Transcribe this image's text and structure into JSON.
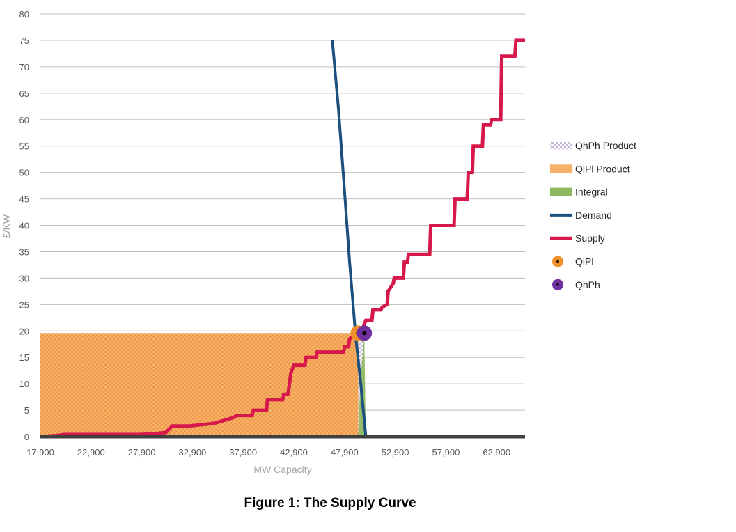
{
  "chart_data": {
    "type": "line",
    "title": "",
    "xlabel": "MW Capacity",
    "ylabel": "£/KW",
    "xlim": [
      17900,
      65700
    ],
    "ylim": [
      0,
      80
    ],
    "x_ticks": [
      "17,900",
      "22,900",
      "27,900",
      "32,900",
      "37,900",
      "42,900",
      "47,900",
      "52,900",
      "57,900",
      "62,900"
    ],
    "x_tick_values": [
      17900,
      22900,
      27900,
      32900,
      37900,
      42900,
      47900,
      52900,
      57900,
      62900
    ],
    "y_ticks": [
      0,
      5,
      10,
      15,
      20,
      25,
      30,
      35,
      40,
      45,
      50,
      55,
      60,
      65,
      70,
      75,
      80
    ],
    "grid": true,
    "legend_position": "right",
    "colors": {
      "demand": "#1b4f7e",
      "supply": "#d6184a",
      "qlpl_product": "#f6b26b",
      "qlpl_check": "#e8892d",
      "integral": "#8cb85c",
      "qhph_product": "#c9b8da",
      "qlpl_point": "#f0902a",
      "qhph_point": "#7030a0",
      "axis": "#404040",
      "grid": "#bfbfbf"
    },
    "series": [
      {
        "name": "Demand",
        "type": "line",
        "points": [
          [
            46700,
            75
          ],
          [
            47300,
            62
          ],
          [
            47800,
            49
          ],
          [
            48400,
            33
          ],
          [
            49000,
            19
          ],
          [
            49500,
            10
          ],
          [
            50000,
            0
          ]
        ]
      },
      {
        "name": "Supply",
        "type": "step",
        "points": [
          [
            17900,
            0
          ],
          [
            19500,
            0.2
          ],
          [
            20200,
            0.4
          ],
          [
            22000,
            0.4
          ],
          [
            27500,
            0.4
          ],
          [
            29000,
            0.5
          ],
          [
            30300,
            0.8
          ],
          [
            30900,
            2
          ],
          [
            32500,
            2
          ],
          [
            33500,
            2.2
          ],
          [
            35000,
            2.5
          ],
          [
            36800,
            3.5
          ],
          [
            37300,
            4
          ],
          [
            38800,
            4
          ],
          [
            38900,
            5
          ],
          [
            40200,
            5
          ],
          [
            40300,
            7
          ],
          [
            41800,
            7
          ],
          [
            41900,
            8
          ],
          [
            42300,
            8
          ],
          [
            42400,
            9
          ],
          [
            42600,
            12
          ],
          [
            42900,
            13.5
          ],
          [
            44000,
            13.5
          ],
          [
            44100,
            15
          ],
          [
            45100,
            15
          ],
          [
            45200,
            16
          ],
          [
            47800,
            16
          ],
          [
            47900,
            17
          ],
          [
            48300,
            17
          ],
          [
            48400,
            18.5
          ],
          [
            49100,
            19.6
          ],
          [
            49600,
            20
          ],
          [
            50000,
            22
          ],
          [
            50600,
            22
          ],
          [
            50700,
            24
          ],
          [
            51500,
            24
          ],
          [
            51600,
            24.5
          ],
          [
            52100,
            25
          ],
          [
            52200,
            27.5
          ],
          [
            52700,
            29
          ],
          [
            52800,
            30
          ],
          [
            53700,
            30
          ],
          [
            53800,
            33
          ],
          [
            54100,
            33
          ],
          [
            54200,
            34.5
          ],
          [
            56300,
            34.5
          ],
          [
            56400,
            40
          ],
          [
            58700,
            40
          ],
          [
            58800,
            45
          ],
          [
            60000,
            45
          ],
          [
            60100,
            50
          ],
          [
            60500,
            50
          ],
          [
            60600,
            55
          ],
          [
            61500,
            55
          ],
          [
            61600,
            59
          ],
          [
            62300,
            59
          ],
          [
            62400,
            60
          ],
          [
            63300,
            60
          ],
          [
            63400,
            72
          ],
          [
            64700,
            72
          ],
          [
            64800,
            75
          ],
          [
            65700,
            75
          ]
        ]
      }
    ],
    "areas": [
      {
        "name": "QlPl Product",
        "x": [
          17900,
          49250
        ],
        "y": [
          0,
          19.6
        ]
      },
      {
        "name": "QhPh Product",
        "x": [
          17900,
          49850
        ],
        "y": [
          0,
          19.6
        ]
      },
      {
        "name": "Integral",
        "points": [
          [
            49250,
            0
          ],
          [
            49450,
            10
          ],
          [
            49850,
            19.6
          ],
          [
            50000,
            0
          ]
        ]
      }
    ],
    "markers": [
      {
        "name": "QlPl",
        "x": 49250,
        "y": 19.6
      },
      {
        "name": "QhPh",
        "x": 49850,
        "y": 19.6
      }
    ],
    "legend": [
      "QhPh Product",
      "QlPl Product",
      "Integral",
      "Demand",
      "Supply",
      "QlPl",
      "QhPh"
    ]
  },
  "caption": "Figure 1: The Supply Curve"
}
